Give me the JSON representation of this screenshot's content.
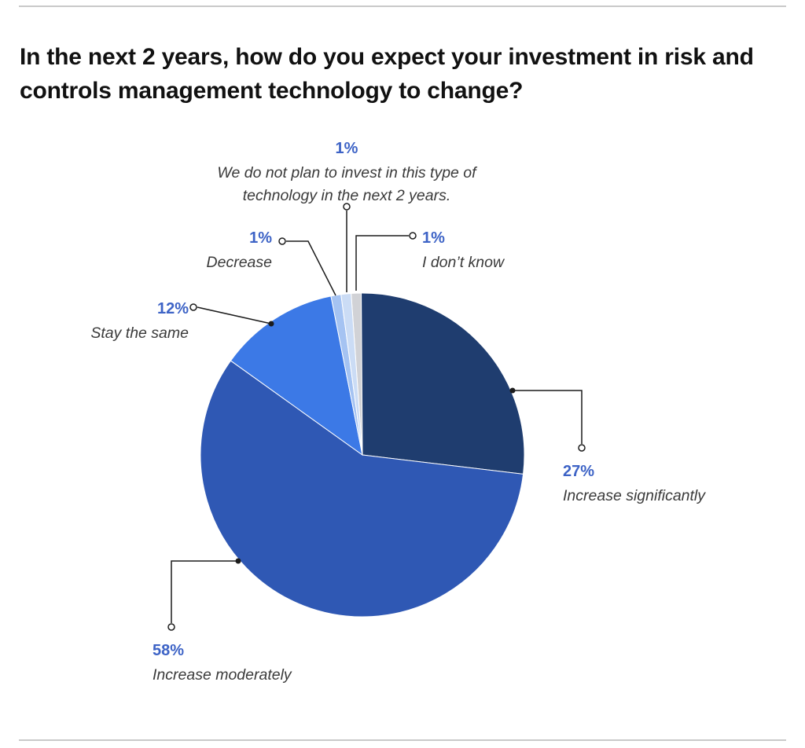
{
  "page": {
    "title": "In the next 2 years, how do you expect your investment in risk and controls management technology to change?"
  },
  "chart_data": {
    "type": "pie",
    "title": "In the next 2 years, how do you expect your investment in risk and controls management technology to change?",
    "direction": "clockwise",
    "start_angle_deg": -4,
    "legend_position": "callout-labels",
    "percent_label_color": "#3d63c6",
    "label_text_color": "#3a3a3a",
    "leader_line_color": "#1c1c1c",
    "divider_color": "#c9c9c9",
    "slices": [
      {
        "id": "i-dont-know",
        "label": "I don’t know",
        "percent_label": "1%",
        "value": 1,
        "color": "#d1d2d6"
      },
      {
        "id": "increase-significantly",
        "label": "Increase significantly",
        "percent_label": "27%",
        "value": 27,
        "color": "#1f3d6f"
      },
      {
        "id": "increase-moderately",
        "label": "Increase moderately",
        "percent_label": "58%",
        "value": 58,
        "color": "#2f58b4"
      },
      {
        "id": "stay-the-same",
        "label": "Stay the same",
        "percent_label": "12%",
        "value": 12,
        "color": "#3c79e6"
      },
      {
        "id": "decrease",
        "label": "Decrease",
        "percent_label": "1%",
        "value": 1,
        "color": "#a5c3f2"
      },
      {
        "id": "no-plan",
        "label": "We do not plan to invest in this type of technology in the next 2 years.",
        "percent_label": "1%",
        "value": 1,
        "color": "#cbdcf5"
      }
    ]
  }
}
